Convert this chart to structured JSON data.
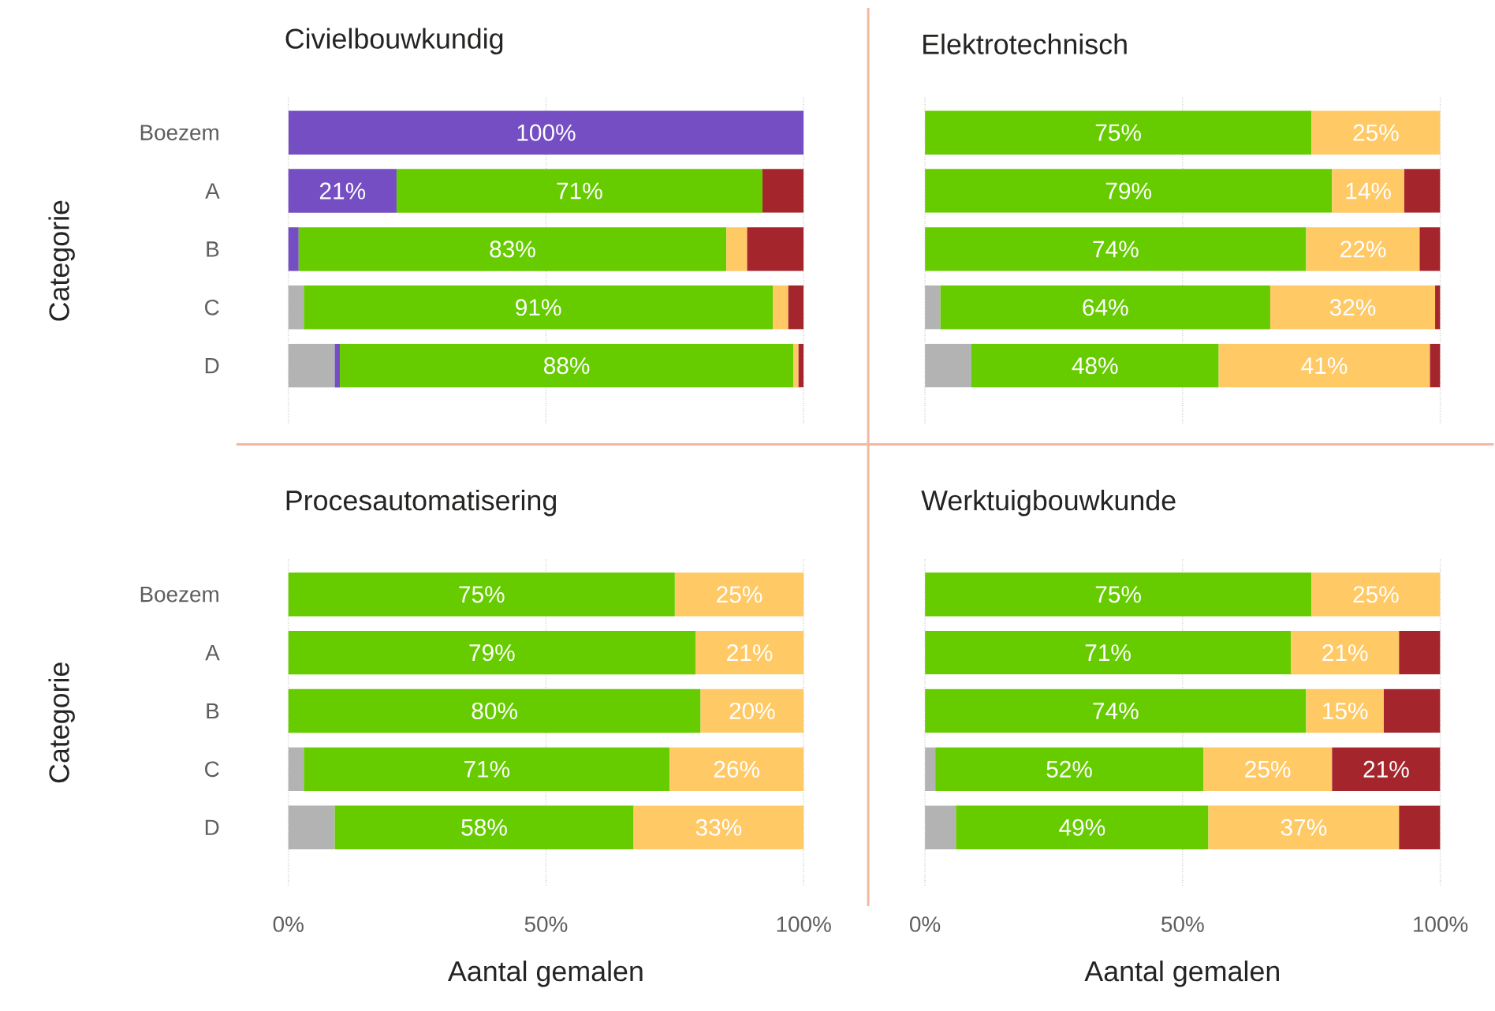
{
  "chart_data": [
    {
      "type": "bar",
      "orientation": "horizontal",
      "stacked": true,
      "grid": "x",
      "tick_labels": "y",
      "title": "Civielbouwkundig",
      "ylabel": "Categorie",
      "categories": [
        "Boezem",
        "A",
        "B",
        "C",
        "D"
      ],
      "xlim": [
        0,
        100
      ],
      "xticks": [
        {
          "value": 0,
          "label": null
        },
        {
          "value": 50,
          "label": null
        },
        {
          "value": 100,
          "label": null
        }
      ],
      "series": [
        {
          "color": "#b3b3b3",
          "values": [
            null,
            null,
            null,
            3,
            9
          ],
          "value_labels": [
            null,
            null,
            null,
            null,
            null
          ]
        },
        {
          "color": "#744ec2",
          "values": [
            100,
            21,
            2,
            null,
            1
          ],
          "value_labels": [
            "100%",
            "21%",
            null,
            null,
            null
          ]
        },
        {
          "color": "#66cc00",
          "values": [
            null,
            71,
            83,
            91,
            88
          ],
          "value_labels": [
            null,
            "71%",
            "83%",
            "91%",
            "88%"
          ]
        },
        {
          "color": "#ffc966",
          "values": [
            null,
            null,
            4,
            3,
            1
          ],
          "value_labels": [
            null,
            null,
            null,
            null,
            null
          ]
        },
        {
          "color": "#a4262c",
          "values": [
            null,
            8,
            11,
            3,
            1
          ],
          "value_labels": [
            null,
            null,
            null,
            null,
            null
          ]
        }
      ]
    },
    {
      "type": "bar",
      "orientation": "horizontal",
      "stacked": true,
      "grid": "x",
      "tick_labels": false,
      "title": "Elektrotechnisch",
      "categories": [
        null,
        null,
        null,
        null,
        null
      ],
      "xlim": [
        0,
        100
      ],
      "xticks": [
        {
          "value": 0,
          "label": null
        },
        {
          "value": 50,
          "label": null
        },
        {
          "value": 100,
          "label": null
        }
      ],
      "series": [
        {
          "color": "#b3b3b3",
          "values": [
            null,
            null,
            null,
            3,
            9
          ],
          "value_labels": [
            null,
            null,
            null,
            null,
            null
          ]
        },
        {
          "color": "#66cc00",
          "values": [
            75,
            79,
            74,
            64,
            48
          ],
          "value_labels": [
            "75%",
            "79%",
            "74%",
            "64%",
            "48%"
          ]
        },
        {
          "color": "#ffc966",
          "values": [
            25,
            14,
            22,
            32,
            41
          ],
          "value_labels": [
            "25%",
            "14%",
            "22%",
            "32%",
            "41%"
          ]
        },
        {
          "color": "#a4262c",
          "values": [
            null,
            7,
            4,
            1,
            2
          ],
          "value_labels": [
            null,
            null,
            null,
            null,
            null
          ]
        }
      ]
    },
    {
      "type": "bar",
      "orientation": "horizontal",
      "stacked": true,
      "grid": "x",
      "title": "Procesautomatisering",
      "xlabel": "Aantal gemalen",
      "ylabel": "Categorie",
      "categories": [
        "Boezem",
        "A",
        "B",
        "C",
        "D"
      ],
      "xlim": [
        0,
        100
      ],
      "xticks": [
        {
          "value": 0,
          "label": "0%"
        },
        {
          "value": 50,
          "label": "50%"
        },
        {
          "value": 100,
          "label": "100%"
        }
      ],
      "series": [
        {
          "color": "#b3b3b3",
          "values": [
            null,
            null,
            null,
            3,
            9
          ],
          "value_labels": [
            null,
            null,
            null,
            null,
            null
          ]
        },
        {
          "color": "#66cc00",
          "values": [
            75,
            79,
            80,
            71,
            58
          ],
          "value_labels": [
            "75%",
            "79%",
            "80%",
            "71%",
            "58%"
          ]
        },
        {
          "color": "#ffc966",
          "values": [
            25,
            21,
            20,
            26,
            33
          ],
          "value_labels": [
            "25%",
            "21%",
            "20%",
            "26%",
            "33%"
          ]
        }
      ]
    },
    {
      "type": "bar",
      "orientation": "horizontal",
      "stacked": true,
      "grid": "x",
      "tick_labels": "x",
      "title": "Werktuigbouwkunde",
      "xlabel": "Aantal gemalen",
      "categories": [
        null,
        null,
        null,
        null,
        null
      ],
      "xlim": [
        0,
        100
      ],
      "xticks": [
        {
          "value": 0,
          "label": "0%"
        },
        {
          "value": 50,
          "label": "50%"
        },
        {
          "value": 100,
          "label": "100%"
        }
      ],
      "series": [
        {
          "color": "#b3b3b3",
          "values": [
            null,
            null,
            null,
            2,
            6
          ],
          "value_labels": [
            null,
            null,
            null,
            null,
            null
          ]
        },
        {
          "color": "#66cc00",
          "values": [
            75,
            71,
            74,
            52,
            49
          ],
          "value_labels": [
            "75%",
            "71%",
            "74%",
            "52%",
            "49%"
          ]
        },
        {
          "color": "#ffc966",
          "values": [
            25,
            21,
            15,
            25,
            37
          ],
          "value_labels": [
            "25%",
            "21%",
            "15%",
            "25%",
            "37%"
          ]
        },
        {
          "color": "#a4262c",
          "values": [
            null,
            8,
            11,
            21,
            8
          ],
          "value_labels": [
            null,
            null,
            null,
            "21%",
            null
          ]
        }
      ]
    }
  ]
}
